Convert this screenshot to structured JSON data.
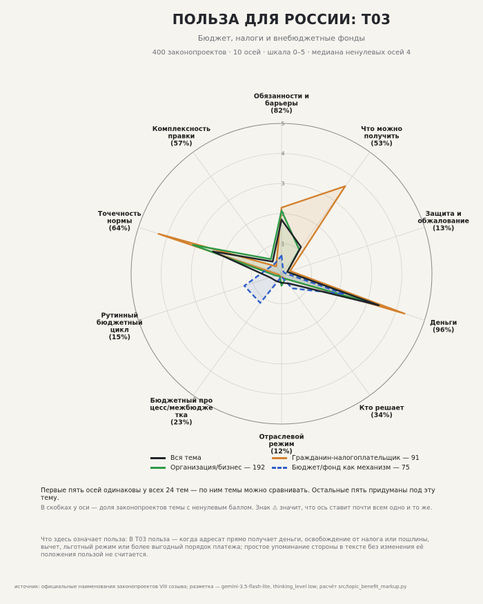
{
  "header": {
    "title": "ПОЛЬЗА ДЛЯ РОССИИ: Т03",
    "subtitle": "Бюджет, налоги и внебюджетные фонды",
    "meta": "400 законопроектов · 10 осей · шкала 0–5 · медиана ненулевых осей 4"
  },
  "chart_data": {
    "type": "radar",
    "scale": [
      0,
      5
    ],
    "ring_labels": [
      "1",
      "2",
      "3",
      "4",
      "5"
    ],
    "axes": [
      {
        "name": "Обязанности и барьеры",
        "share": "(82%)"
      },
      {
        "name": "Что можно получить",
        "share": "(53%)"
      },
      {
        "name": "Защита и обжалование",
        "share": "(13%)"
      },
      {
        "name": "Деньги",
        "share": "(96%)"
      },
      {
        "name": "Кто решает",
        "share": "(34%)"
      },
      {
        "name": "Отраслевой режим",
        "share": "(12%)"
      },
      {
        "name": "Бюджетный процесс/межбюджетка",
        "share": "(23%)"
      },
      {
        "name": "Рутинный бюджетный цикл",
        "share": "(15%)"
      },
      {
        "name": "Точечность нормы",
        "share": "(64%)"
      },
      {
        "name": "Комплексность правки",
        "share": "(57%)"
      }
    ],
    "axis_label_lines": [
      [
        "Обязанности и",
        "барьеры",
        "(82%)"
      ],
      [
        "Что можно",
        "получить",
        "(53%)"
      ],
      [
        "Защита и",
        "обжалование",
        "(13%)"
      ],
      [
        "Деньги",
        "(96%)"
      ],
      [
        "Кто решает",
        "(34%)"
      ],
      [
        "Отраслевой",
        "режим",
        "(12%)"
      ],
      [
        "Бюджетный про",
        "цесс/межбюдже",
        "тка",
        "(23%)"
      ],
      [
        "Рутинный",
        "бюджетный",
        "цикл",
        "(15%)"
      ],
      [
        "Точечность",
        "нормы",
        "(64%)"
      ],
      [
        "Комплексность",
        "правки",
        "(57%)"
      ]
    ],
    "series": [
      {
        "name": "Вся тема",
        "color": "#1f2328",
        "dash": "solid",
        "fill": false,
        "values": [
          1.8,
          1.1,
          0.2,
          3.4,
          0.4,
          0.3,
          0.3,
          0.4,
          2.4,
          0.5
        ]
      },
      {
        "name": "Гражданин-налогоплательщик — 91",
        "color": "#d2812e",
        "dash": "solid",
        "fill": true,
        "values": [
          2.2,
          3.6,
          0.3,
          4.3,
          0.2,
          0.1,
          0.1,
          0.1,
          4.3,
          0.3
        ]
      },
      {
        "name": "Организация/бизнес — 192",
        "color": "#2e9a47",
        "dash": "solid",
        "fill": true,
        "values": [
          2.1,
          1.0,
          0.2,
          3.4,
          0.2,
          0.4,
          0.1,
          0.2,
          3.1,
          0.6
        ]
      },
      {
        "name": "Бюджет/фонд как механизм — 75",
        "color": "#2f5fcc",
        "dash": "dashed",
        "fill": true,
        "values": [
          0.6,
          0.1,
          0.1,
          2.2,
          0.6,
          0.1,
          1.2,
          1.3,
          0.5,
          0.4
        ]
      }
    ],
    "grid": true
  },
  "legend": {
    "items": [
      {
        "label": "Вся тема",
        "color": "#1f2328",
        "dash": "solid"
      },
      {
        "label": "Гражданин-налогоплательщик — 91",
        "color": "#d2812e",
        "dash": "solid"
      },
      {
        "label": "Организация/бизнес — 192",
        "color": "#2e9a47",
        "dash": "solid"
      },
      {
        "label": "Бюджет/фонд как механизм — 75",
        "color": "#2f5fcc",
        "dash": "dashed"
      }
    ]
  },
  "notes": {
    "comparable": "Первые пять осей одинаковы у всех 24 тем — по ним темы можно сравнивать. Остальные пять придуманы под эту тему.",
    "brackets": "В скобках у оси — доля законопроектов темы с ненулевым баллом. Знак ⚠ значит, что ось ставит почти всем одно и то же.",
    "meaning": "Что здесь означает польза: В Т03 польза — когда адресат прямо получает деньги, освобождение от налога или пошлины, вычет, льготный режим или более выгодный порядок платежа; простое упоминание стороны в тексте без изменения её положения пользой не считается.",
    "source": "источник: официальные наименования законопроектов VIII созыва; разметка — gemini-3.5-flash-lite, thinking_level low; расчёт src/topic_benefit_markup.py"
  }
}
